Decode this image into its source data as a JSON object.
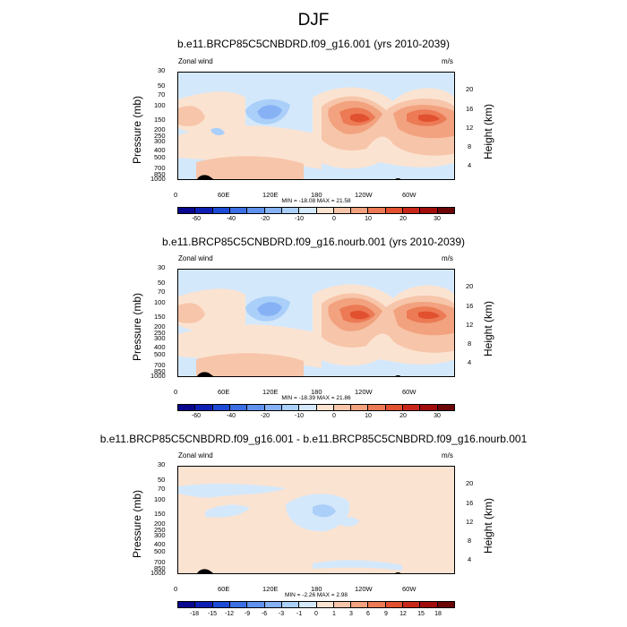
{
  "page_title": "DJF",
  "palette": [
    "#08078e",
    "#0e1fb4",
    "#1d4bd6",
    "#3b6fe3",
    "#6092ee",
    "#86b2f5",
    "#aacff9",
    "#d4e8fb",
    "#fbe3d1",
    "#f7c5a9",
    "#f2a27f",
    "#ec7a55",
    "#e1512f",
    "#c8281a",
    "#a10d0b",
    "#6b0506"
  ],
  "chart_data": [
    {
      "type": "heatmap",
      "title": "b.e11.BRCP85C5CNBDRD.f09_g16.001 (yrs 2010-2039)",
      "left_label": "Zonal wind",
      "units": "m/s",
      "ylabel": "Pressure (mb)",
      "ylabel_right": "Height (km)",
      "xticks": [
        "0",
        "60E",
        "120E",
        "180",
        "120W",
        "60W"
      ],
      "pressure_ticks": [
        "30",
        "50",
        "70",
        "100",
        "150",
        "200",
        "250",
        "300",
        "400",
        "500",
        "700",
        "850",
        "1000"
      ],
      "height_ticks": [
        "20",
        "16",
        "12",
        "8",
        "4"
      ],
      "minmax_text": "MIN = -18.08  MAX =  21.58",
      "colorbar_labels": [
        "-60",
        "-40",
        "-20",
        "-10",
        "0",
        "10",
        "20",
        "30"
      ],
      "min": -18.08,
      "max": 21.58
    },
    {
      "type": "heatmap",
      "title": "b.e11.BRCP85C5CNBDRD.f09_g16.nourb.001 (yrs 2010-2039)",
      "left_label": "Zonal wind",
      "units": "m/s",
      "ylabel": "Pressure (mb)",
      "ylabel_right": "Height (km)",
      "xticks": [
        "0",
        "60E",
        "120E",
        "180",
        "120W",
        "60W"
      ],
      "pressure_ticks": [
        "30",
        "50",
        "70",
        "100",
        "150",
        "200",
        "250",
        "300",
        "400",
        "500",
        "700",
        "850",
        "1000"
      ],
      "height_ticks": [
        "20",
        "16",
        "12",
        "8",
        "4"
      ],
      "minmax_text": "MIN = -18.39  MAX =  21.86",
      "colorbar_labels": [
        "-60",
        "-40",
        "-20",
        "-10",
        "0",
        "10",
        "20",
        "30"
      ],
      "min": -18.39,
      "max": 21.86
    },
    {
      "type": "heatmap",
      "title": "b.e11.BRCP85C5CNBDRD.f09_g16.001 - b.e11.BRCP85C5CNBDRD.f09_g16.nourb.001",
      "left_label": "Zonal wind",
      "units": "m/s",
      "ylabel": "Pressure (mb)",
      "ylabel_right": "Height (km)",
      "xticks": [
        "0",
        "60E",
        "120E",
        "180",
        "120W",
        "60W"
      ],
      "pressure_ticks": [
        "30",
        "50",
        "70",
        "100",
        "150",
        "200",
        "250",
        "300",
        "400",
        "500",
        "700",
        "850",
        "1000"
      ],
      "height_ticks": [
        "20",
        "16",
        "12",
        "8",
        "4"
      ],
      "minmax_text": "MIN =  -2.26  MAX =   2.98",
      "colorbar_labels": [
        "-18",
        "-15",
        "-12",
        "-9",
        "-6",
        "-3",
        "-1",
        "0",
        "1",
        "3",
        "6",
        "9",
        "12",
        "15",
        "18"
      ],
      "min": -2.26,
      "max": 2.98
    }
  ]
}
